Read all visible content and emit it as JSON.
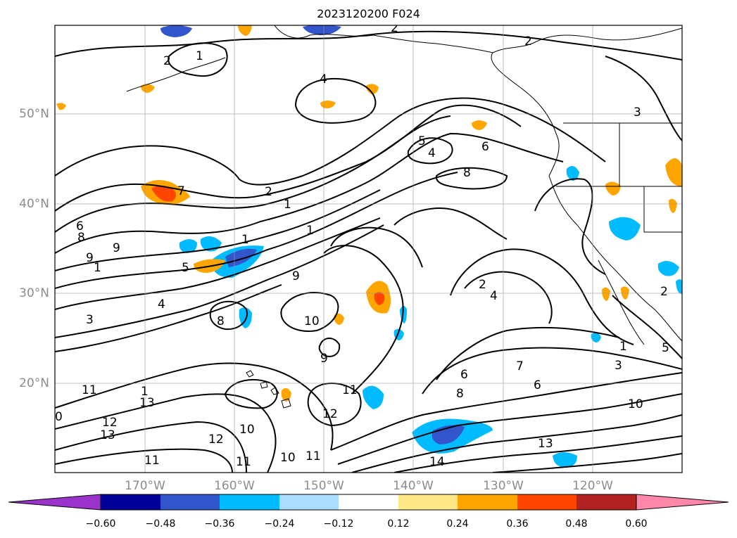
{
  "title": "2023120200 F024",
  "latitude_labels": [
    {
      "text": "50°N",
      "value": 50
    },
    {
      "text": "40°N",
      "value": 40
    },
    {
      "text": "30°N",
      "value": 30
    },
    {
      "text": "20°N",
      "value": 20
    }
  ],
  "longitude_labels": [
    {
      "text": "170°W",
      "value": -170
    },
    {
      "text": "160°W",
      "value": -160
    },
    {
      "text": "150°W",
      "value": -150
    },
    {
      "text": "140°W",
      "value": -140
    },
    {
      "text": "130°W",
      "value": -130
    },
    {
      "text": "120°W",
      "value": -120
    }
  ],
  "colorbar": {
    "ticks": [
      "−0.60",
      "−0.48",
      "−0.36",
      "−0.24",
      "−0.12",
      "0.12",
      "0.24",
      "0.36",
      "0.48",
      "0.60"
    ],
    "colors": [
      "#9933cc",
      "#000099",
      "#3355cc",
      "#00bbff",
      "#aaddff",
      "#ffffff",
      "#ffe888",
      "#ffa500",
      "#ff4500",
      "#b22222",
      "#ff88aa"
    ]
  },
  "contour_labels": [
    {
      "text": "2"
    },
    {
      "text": "1"
    },
    {
      "text": "2"
    },
    {
      "text": "2"
    },
    {
      "text": "4"
    },
    {
      "text": "5"
    },
    {
      "text": "4"
    },
    {
      "text": "6"
    },
    {
      "text": "8"
    },
    {
      "text": "7"
    },
    {
      "text": "2"
    },
    {
      "text": "1"
    },
    {
      "text": "1"
    },
    {
      "text": "1"
    },
    {
      "text": "6"
    },
    {
      "text": "8"
    },
    {
      "text": "9"
    },
    {
      "text": "1"
    },
    {
      "text": "5"
    },
    {
      "text": "9"
    },
    {
      "text": "4"
    },
    {
      "text": "3"
    },
    {
      "text": "2"
    },
    {
      "text": "4"
    },
    {
      "text": "10"
    },
    {
      "text": "9"
    },
    {
      "text": "6"
    },
    {
      "text": "7"
    },
    {
      "text": "6"
    },
    {
      "text": "3"
    },
    {
      "text": "1"
    },
    {
      "text": "11"
    },
    {
      "text": "8"
    },
    {
      "text": "11"
    },
    {
      "text": "12"
    },
    {
      "text": "10"
    },
    {
      "text": "11"
    },
    {
      "text": "12"
    },
    {
      "text": "13"
    },
    {
      "text": "11"
    },
    {
      "text": "10"
    },
    {
      "text": "13"
    },
    {
      "text": "14"
    },
    {
      "text": "10"
    },
    {
      "text": "11"
    },
    {
      "text": "12"
    },
    {
      "text": "13"
    },
    {
      "text": "0"
    },
    {
      "text": "8"
    },
    {
      "text": "3"
    },
    {
      "text": "5"
    },
    {
      "text": "2"
    },
    {
      "text": "9"
    },
    {
      "text": "1"
    }
  ]
}
